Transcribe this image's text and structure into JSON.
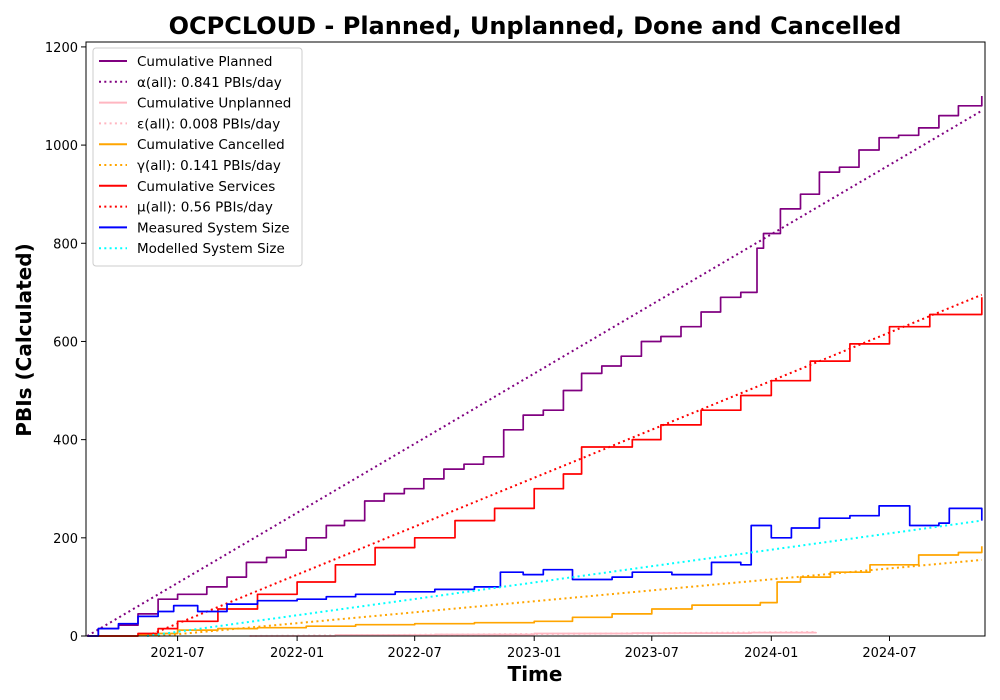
{
  "chart_data": {
    "type": "line",
    "title": "OCPCLOUD - Planned, Unplanned, Done  and Cancelled",
    "xlabel": "Time",
    "ylabel": "PBIs (Calculated)",
    "xlim": [
      "2021-02-10",
      "2024-11-25"
    ],
    "ylim": [
      0,
      1210
    ],
    "x_ticks": [
      "2021-07",
      "2022-01",
      "2022-07",
      "2023-01",
      "2023-07",
      "2024-01",
      "2024-07"
    ],
    "y_ticks": [
      0,
      200,
      400,
      600,
      800,
      1000,
      1200
    ],
    "grid": false,
    "legend_position": "top-left",
    "series": [
      {
        "name": "Cumulative Planned",
        "color": "#800080",
        "style": "solid",
        "step": true,
        "x": [
          "2021-02-12",
          "2021-03-01",
          "2021-04-01",
          "2021-05-01",
          "2021-06-01",
          "2021-07-01",
          "2021-08-15",
          "2021-09-15",
          "2021-10-15",
          "2021-11-15",
          "2021-12-15",
          "2022-01-15",
          "2022-02-15",
          "2022-03-15",
          "2022-04-15",
          "2022-05-15",
          "2022-06-15",
          "2022-07-15",
          "2022-08-15",
          "2022-09-15",
          "2022-10-15",
          "2022-11-15",
          "2022-12-15",
          "2023-01-15",
          "2023-02-15",
          "2023-03-15",
          "2023-04-15",
          "2023-05-15",
          "2023-06-15",
          "2023-07-15",
          "2023-08-15",
          "2023-09-15",
          "2023-10-15",
          "2023-11-15",
          "2023-12-10",
          "2023-12-20",
          "2024-01-15",
          "2024-02-15",
          "2024-03-15",
          "2024-04-15",
          "2024-05-15",
          "2024-06-15",
          "2024-07-15",
          "2024-08-15",
          "2024-09-15",
          "2024-10-15",
          "2024-11-20"
        ],
        "y": [
          0,
          15,
          22,
          45,
          75,
          85,
          100,
          120,
          150,
          160,
          175,
          200,
          225,
          235,
          275,
          290,
          300,
          320,
          340,
          350,
          365,
          420,
          450,
          460,
          500,
          535,
          550,
          570,
          600,
          610,
          630,
          660,
          690,
          700,
          790,
          820,
          870,
          900,
          945,
          955,
          990,
          1015,
          1020,
          1035,
          1060,
          1080,
          1100
        ]
      },
      {
        "name": "α(all): 0.841 PBIs/day",
        "color": "#800080",
        "style": "dotted",
        "x": [
          "2021-02-12",
          "2024-11-20"
        ],
        "y": [
          0,
          1070
        ]
      },
      {
        "name": "Cumulative Unplanned",
        "color": "#ffb6c1",
        "style": "solid",
        "step": true,
        "x": [
          "2021-10-20",
          "2022-03-01",
          "2022-08-01",
          "2023-01-01",
          "2023-06-01",
          "2023-12-01",
          "2024-03-10"
        ],
        "y": [
          0,
          2,
          3,
          5,
          6,
          7,
          8
        ]
      },
      {
        "name": "ε(all): 0.008 PBIs/day",
        "color": "#ffb6c1",
        "style": "dotted",
        "x": [
          "2021-10-20",
          "2024-03-10"
        ],
        "y": [
          0,
          8
        ]
      },
      {
        "name": "Cumulative Cancelled",
        "color": "#ffa500",
        "style": "solid",
        "step": true,
        "x": [
          "2021-02-12",
          "2021-05-01",
          "2021-06-01",
          "2021-07-01",
          "2021-09-01",
          "2021-11-01",
          "2022-01-15",
          "2022-04-01",
          "2022-07-01",
          "2022-10-01",
          "2023-01-01",
          "2023-03-01",
          "2023-05-01",
          "2023-07-01",
          "2023-09-01",
          "2023-12-15",
          "2024-01-10",
          "2024-02-15",
          "2024-04-01",
          "2024-06-01",
          "2024-08-15",
          "2024-10-15",
          "2024-11-20"
        ],
        "y": [
          0,
          2,
          5,
          12,
          15,
          17,
          20,
          23,
          25,
          27,
          30,
          38,
          45,
          55,
          63,
          68,
          110,
          120,
          130,
          145,
          165,
          170,
          183
        ]
      },
      {
        "name": "γ(all): 0.141 PBIs/day",
        "color": "#ffa500",
        "style": "dotted",
        "x": [
          "2021-06-01",
          "2024-11-20"
        ],
        "y": [
          0,
          155
        ]
      },
      {
        "name": "Cumulative Services",
        "color": "#ff0000",
        "style": "solid",
        "step": true,
        "x": [
          "2021-02-12",
          "2021-05-01",
          "2021-06-01",
          "2021-07-01",
          "2021-09-01",
          "2021-11-01",
          "2022-01-01",
          "2022-03-01",
          "2022-05-01",
          "2022-07-01",
          "2022-09-01",
          "2022-11-01",
          "2023-01-01",
          "2023-02-15",
          "2023-03-15",
          "2023-06-01",
          "2023-07-15",
          "2023-09-15",
          "2023-11-15",
          "2024-01-01",
          "2024-03-01",
          "2024-05-01",
          "2024-07-01",
          "2024-09-01",
          "2024-11-20"
        ],
        "y": [
          0,
          5,
          15,
          30,
          55,
          85,
          110,
          145,
          180,
          200,
          235,
          260,
          300,
          330,
          385,
          400,
          430,
          460,
          490,
          520,
          560,
          595,
          630,
          655,
          690
        ]
      },
      {
        "name": "μ(all): 0.56 PBIs/day",
        "color": "#ff0000",
        "style": "dotted",
        "x": [
          "2021-05-15",
          "2024-11-20"
        ],
        "y": [
          0,
          695
        ]
      },
      {
        "name": "Measured System Size",
        "color": "#0000ff",
        "style": "solid",
        "step": true,
        "x": [
          "2021-02-12",
          "2021-03-01",
          "2021-04-01",
          "2021-05-01",
          "2021-06-01",
          "2021-06-25",
          "2021-08-01",
          "2021-09-15",
          "2021-11-01",
          "2022-01-01",
          "2022-02-15",
          "2022-04-01",
          "2022-06-01",
          "2022-08-01",
          "2022-10-01",
          "2022-11-10",
          "2022-12-15",
          "2023-01-15",
          "2023-03-01",
          "2023-05-01",
          "2023-06-01",
          "2023-08-01",
          "2023-10-01",
          "2023-11-15",
          "2023-12-01",
          "2024-01-01",
          "2024-02-01",
          "2024-03-15",
          "2024-05-01",
          "2024-06-15",
          "2024-08-01",
          "2024-09-15",
          "2024-10-01",
          "2024-11-20"
        ],
        "y": [
          0,
          15,
          25,
          40,
          50,
          62,
          50,
          65,
          72,
          75,
          80,
          85,
          90,
          95,
          100,
          130,
          125,
          135,
          115,
          120,
          130,
          125,
          150,
          145,
          225,
          200,
          220,
          240,
          245,
          265,
          225,
          230,
          260,
          235
        ]
      },
      {
        "name": "Modelled System Size",
        "color": "#00ffff",
        "style": "dotted",
        "x": [
          "2021-05-15",
          "2024-11-20"
        ],
        "y": [
          0,
          235
        ]
      }
    ]
  }
}
